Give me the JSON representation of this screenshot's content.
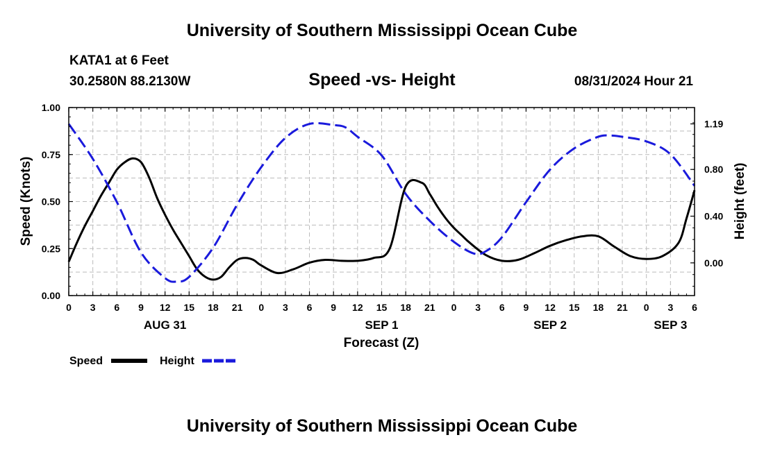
{
  "header": {
    "title": "University of Southern Mississippi Ocean Cube",
    "station": "KATA1 at 6 Feet",
    "coords": "30.2580N  88.2130W",
    "run_time": "08/31/2024 Hour 21"
  },
  "footer": {
    "title": "University of Southern Mississippi Ocean Cube"
  },
  "colors": {
    "speed": "#000000",
    "height": "#1a1adc",
    "grid": "#bbbbbb"
  },
  "chart_data": {
    "type": "line",
    "title": "Speed -vs- Height",
    "xlabel": "Forecast (Z)",
    "ylabel": "Speed (Knots)",
    "y2label": "Height (feet)",
    "xlim": [
      0,
      78
    ],
    "ylim": [
      0,
      1.0
    ],
    "y2lim": [
      -0.28,
      1.33
    ],
    "grid": true,
    "legend_position": "bottom-left",
    "x_tick_labels": [
      "0",
      "3",
      "6",
      "9",
      "12",
      "15",
      "18",
      "21",
      "0",
      "3",
      "6",
      "9",
      "12",
      "15",
      "18",
      "21",
      "0",
      "3",
      "6",
      "9",
      "12",
      "15",
      "18",
      "21",
      "0",
      "3",
      "6"
    ],
    "y_ticks": [
      0,
      0.25,
      0.5,
      0.75,
      1.0
    ],
    "y_tick_labels": [
      "0.00",
      "0.25",
      "0.50",
      "0.75",
      "1.00"
    ],
    "y2_ticks": [
      0.0,
      0.4,
      0.8,
      1.19
    ],
    "y2_tick_labels": [
      "0.00",
      "0.40",
      "0.80",
      "1.19"
    ],
    "date_labels": [
      {
        "x": 12,
        "label": "AUG 31"
      },
      {
        "x": 39,
        "label": "SEP 1"
      },
      {
        "x": 60,
        "label": "SEP 2"
      },
      {
        "x": 75,
        "label": "SEP 3"
      }
    ],
    "series": [
      {
        "name": "Speed",
        "axis": "left",
        "style": "solid",
        "x": [
          0,
          1,
          2,
          3,
          4,
          5,
          6,
          7,
          8,
          9,
          10,
          11,
          12,
          13,
          14,
          15,
          16,
          17,
          18,
          19,
          20,
          21,
          22,
          23,
          24,
          26,
          28,
          30,
          32,
          34,
          36,
          38,
          40,
          42,
          44,
          45,
          46,
          47,
          48,
          49,
          50,
          52,
          54,
          56,
          58,
          60,
          62,
          64,
          66,
          68,
          70,
          72,
          74,
          76,
          77,
          78
        ],
        "values": [
          0.18,
          0.28,
          0.37,
          0.45,
          0.53,
          0.6,
          0.67,
          0.71,
          0.73,
          0.71,
          0.63,
          0.52,
          0.43,
          0.35,
          0.28,
          0.21,
          0.14,
          0.1,
          0.085,
          0.1,
          0.15,
          0.19,
          0.2,
          0.19,
          0.16,
          0.12,
          0.14,
          0.175,
          0.19,
          0.185,
          0.185,
          0.2,
          0.25,
          0.58,
          0.6,
          0.54,
          0.47,
          0.41,
          0.36,
          0.32,
          0.28,
          0.215,
          0.185,
          0.19,
          0.225,
          0.265,
          0.295,
          0.315,
          0.315,
          0.26,
          0.21,
          0.195,
          0.21,
          0.28,
          0.41,
          0.56
        ]
      },
      {
        "name": "Height",
        "axis": "right",
        "style": "dashed",
        "x": [
          0,
          3,
          6,
          9,
          12,
          13.5,
          15,
          18,
          21,
          24,
          27,
          30,
          33,
          34.5,
          36,
          39,
          42,
          45,
          48,
          50.5,
          52,
          54,
          57,
          60,
          63,
          66,
          67.5,
          69,
          72,
          75,
          78
        ],
        "values": [
          1.19,
          0.89,
          0.52,
          0.09,
          -0.13,
          -0.16,
          -0.12,
          0.13,
          0.5,
          0.82,
          1.07,
          1.19,
          1.18,
          1.16,
          1.08,
          0.92,
          0.59,
          0.36,
          0.18,
          0.08,
          0.1,
          0.22,
          0.52,
          0.8,
          0.98,
          1.08,
          1.09,
          1.08,
          1.04,
          0.93,
          0.66
        ]
      }
    ]
  }
}
